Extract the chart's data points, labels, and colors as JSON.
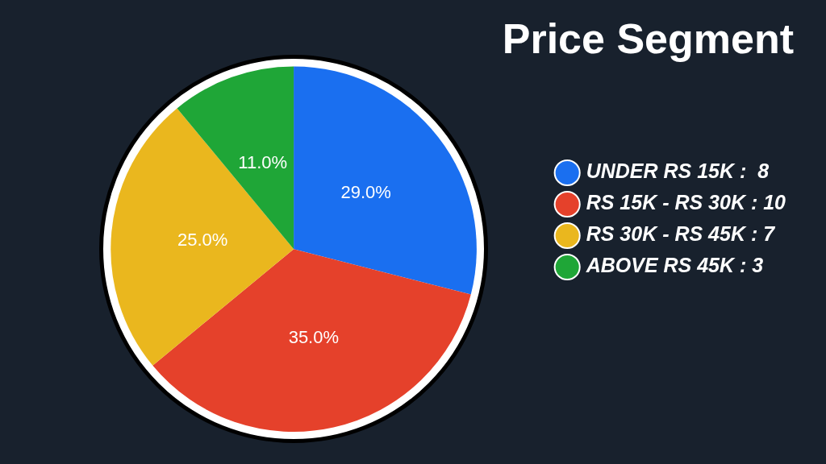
{
  "chart_data": {
    "type": "pie",
    "title": "Price Segment",
    "categories": [
      "UNDER RS 15K :  8",
      "RS 15K - RS 30K : 10",
      "RS 30K - RS 45K : 7",
      "ABOVE RS 45K : 3"
    ],
    "values": [
      29,
      35,
      25,
      11
    ],
    "value_labels": [
      "29.0%",
      "35.0%",
      "25.0%",
      "11.0%"
    ],
    "colors": [
      "#1a6ff0",
      "#e5412b",
      "#eab71e",
      "#1fa637"
    ],
    "legend": "right"
  }
}
